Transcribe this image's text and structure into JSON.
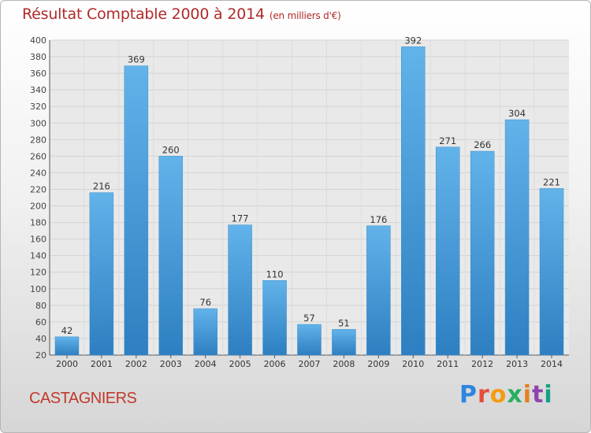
{
  "header": {
    "title": "Résultat Comptable 2000 à 2014",
    "unit": "(en milliers d'€)"
  },
  "footer": {
    "city": "CASTAGNIERS",
    "logo_letters": [
      "P",
      "r",
      "o",
      "x",
      "i",
      "t",
      "i"
    ],
    "logo_colors": [
      "#2e86de",
      "#e74c3c",
      "#f39c12",
      "#27ae60",
      "#e67e22",
      "#8e44ad",
      "#16a085"
    ]
  },
  "chart_data": {
    "type": "bar",
    "title": "Résultat Comptable 2000 à 2014",
    "xlabel": "",
    "ylabel": "",
    "ylim": [
      20,
      400
    ],
    "ytick_step": 20,
    "grid": true,
    "categories": [
      "2000",
      "2001",
      "2002",
      "2003",
      "2004",
      "2005",
      "2006",
      "2007",
      "2008",
      "2009",
      "2010",
      "2011",
      "2012",
      "2013",
      "2014"
    ],
    "values": [
      42,
      216,
      369,
      260,
      76,
      177,
      110,
      57,
      51,
      176,
      392,
      271,
      266,
      304,
      221
    ],
    "bar_color_top": "#62b3ea",
    "bar_color_bottom": "#2d7fc1"
  }
}
